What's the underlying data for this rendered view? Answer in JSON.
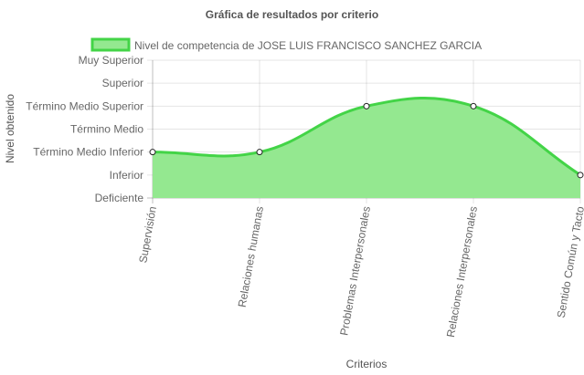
{
  "chart_data": {
    "type": "area",
    "title": "Gráfica de resultados por criterio",
    "xlabel": "Criterios",
    "ylabel": "Nivel obtenido",
    "y_levels": [
      "Deficiente",
      "Inferior",
      "Término Medio Inferior",
      "Término Medio",
      "Término Medio Superior",
      "Superior",
      "Muy Superior"
    ],
    "categories": [
      "Supervisión",
      "Relaciones humanas",
      "Problemas Interpersonales",
      "Relaciones Interpersonales",
      "Sentido Común y Tacto"
    ],
    "series": [
      {
        "name": "Nivel de competencia de JOSE LUIS FRANCISCO SANCHEZ GARCIA",
        "values": [
          "Término Medio Inferior",
          "Término Medio Inferior",
          "Término Medio Superior",
          "Término Medio Superior",
          "Inferior"
        ]
      }
    ],
    "grid": true,
    "legend": "top",
    "colors": {
      "fill": "#94e890",
      "line": "#43d447"
    }
  }
}
